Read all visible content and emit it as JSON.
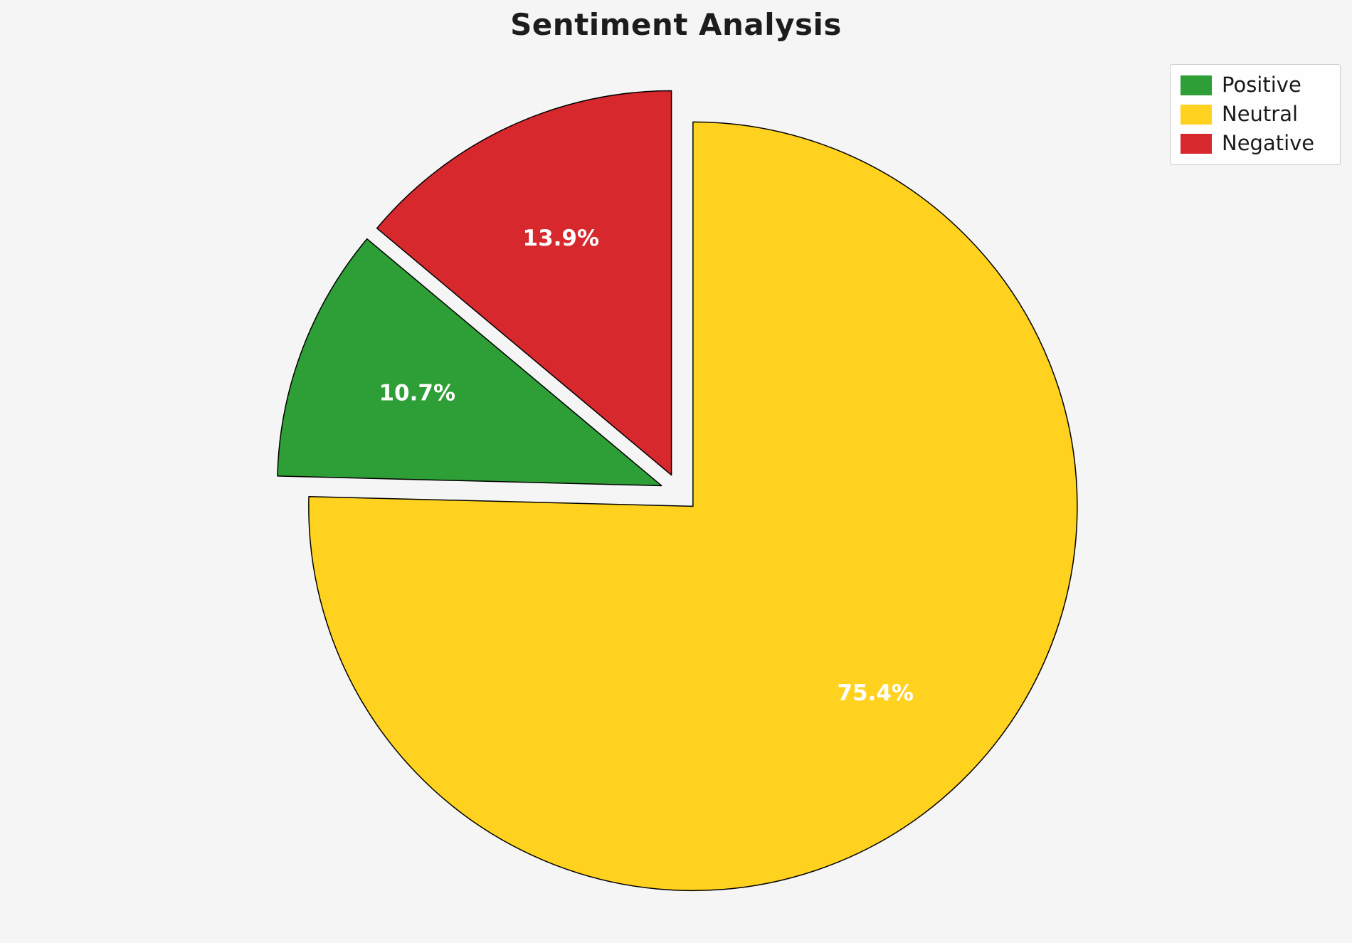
{
  "title": "Sentiment Analysis",
  "colors": {
    "background": "#f5f5f5",
    "title_text": "#1c1c1c",
    "wedge_border": "#000000",
    "slice_label_text": "#ffffff",
    "legend_background": "#fefefe",
    "legend_border": "#cccccc",
    "legend_text": "#1a1a1a"
  },
  "chart_data": {
    "type": "pie",
    "title": "Sentiment Analysis",
    "slices": [
      {
        "label": "Positive",
        "value": 10.7,
        "display": "10.7%",
        "color": "#2e9e36"
      },
      {
        "label": "Neutral",
        "value": 75.4,
        "display": "75.4%",
        "color": "#ffd21f"
      },
      {
        "label": "Negative",
        "value": 13.9,
        "display": "13.9%",
        "color": "#d7282e"
      }
    ],
    "legend": {
      "position": "top-right",
      "entries": [
        "Positive",
        "Neutral",
        "Negative"
      ]
    },
    "start_angle_deg": 90,
    "counterclockwise": true,
    "draw_order": [
      "Negative",
      "Positive",
      "Neutral"
    ],
    "explode_fraction": 0.05,
    "label_radius_fraction": 0.68,
    "grid": false
  }
}
